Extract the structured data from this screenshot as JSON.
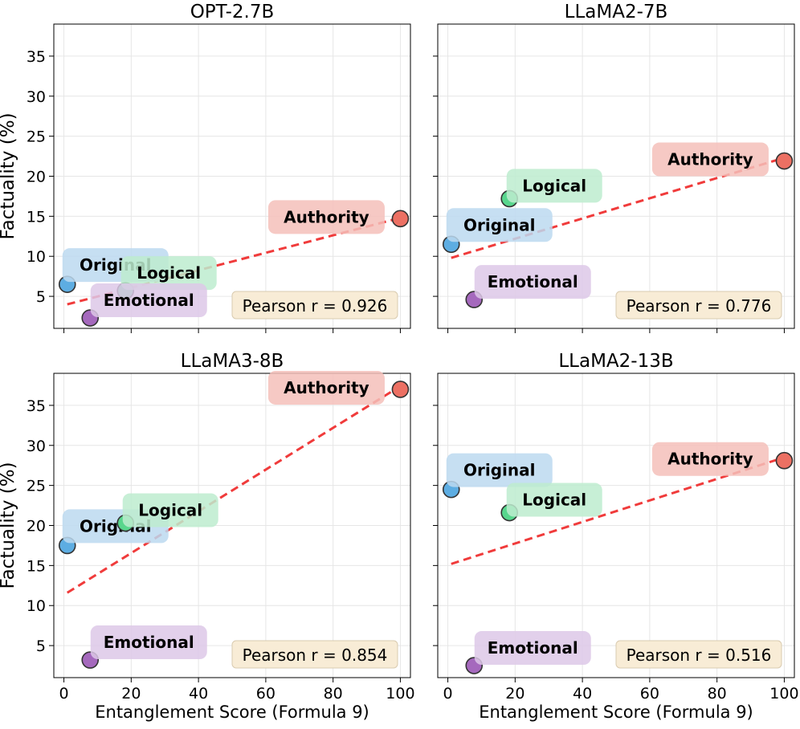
{
  "chart_data": [
    {
      "type": "scatter",
      "title": "OPT-2.7B",
      "xlabel": "",
      "ylabel": "Factuality (%)",
      "xlim": [
        -3,
        103
      ],
      "ylim": [
        1,
        39
      ],
      "xticks": [
        0,
        20,
        40,
        60,
        80,
        100
      ],
      "yticks": [
        5,
        10,
        15,
        20,
        25,
        30,
        35
      ],
      "show_xticklabels": false,
      "show_yticklabels": true,
      "grid": true,
      "annotation": "Pearson r = 0.926",
      "trend": {
        "x0": 1,
        "y0": 4.0,
        "x1": 100,
        "y1": 14.8
      },
      "points": [
        {
          "label": "Original",
          "x": 1,
          "y": 6.5,
          "color": "#5dade2",
          "box": "#bcd9f0"
        },
        {
          "label": "Logical",
          "x": 18.3,
          "y": 5.7,
          "color": "#58d68d",
          "box": "#bdeccf"
        },
        {
          "label": "Emotional",
          "x": 7.8,
          "y": 2.3,
          "color": "#a569bd",
          "box": "#ddc8e7"
        },
        {
          "label": "Authority",
          "x": 100,
          "y": 14.7,
          "color": "#ec7063",
          "box": "#f5c0ba"
        }
      ]
    },
    {
      "type": "scatter",
      "title": "LLaMA2-7B",
      "xlabel": "",
      "ylabel": "",
      "xlim": [
        -3,
        103
      ],
      "ylim": [
        1,
        39
      ],
      "xticks": [
        0,
        20,
        40,
        60,
        80,
        100
      ],
      "yticks": [
        5,
        10,
        15,
        20,
        25,
        30,
        35
      ],
      "show_xticklabels": false,
      "show_yticklabels": false,
      "grid": true,
      "annotation": "Pearson r = 0.776",
      "trend": {
        "x0": 1,
        "y0": 9.8,
        "x1": 100,
        "y1": 22.3
      },
      "points": [
        {
          "label": "Original",
          "x": 1,
          "y": 11.5,
          "color": "#5dade2",
          "box": "#bcd9f0"
        },
        {
          "label": "Logical",
          "x": 18.3,
          "y": 17.2,
          "color": "#58d68d",
          "box": "#bdeccf"
        },
        {
          "label": "Emotional",
          "x": 7.8,
          "y": 4.6,
          "color": "#a569bd",
          "box": "#ddc8e7"
        },
        {
          "label": "Authority",
          "x": 100,
          "y": 21.9,
          "color": "#ec7063",
          "box": "#f5c0ba"
        }
      ]
    },
    {
      "type": "scatter",
      "title": "LLaMA3-8B",
      "xlabel": "Entanglement Score (Formula 9)",
      "ylabel": "Factuality (%)",
      "xlim": [
        -3,
        103
      ],
      "ylim": [
        1,
        39
      ],
      "xticks": [
        0,
        20,
        40,
        60,
        80,
        100
      ],
      "yticks": [
        5,
        10,
        15,
        20,
        25,
        30,
        35
      ],
      "show_xticklabels": true,
      "show_yticklabels": true,
      "grid": true,
      "annotation": "Pearson r = 0.854",
      "trend": {
        "x0": 1,
        "y0": 11.6,
        "x1": 100,
        "y1": 37.4
      },
      "points": [
        {
          "label": "Original",
          "x": 1,
          "y": 17.5,
          "color": "#5dade2",
          "box": "#bcd9f0"
        },
        {
          "label": "Logical",
          "x": 18.3,
          "y": 20.3,
          "color": "#58d68d",
          "box": "#bdeccf"
        },
        {
          "label": "Emotional",
          "x": 7.8,
          "y": 3.2,
          "color": "#a569bd",
          "box": "#ddc8e7"
        },
        {
          "label": "Authority",
          "x": 100,
          "y": 37.0,
          "color": "#ec7063",
          "box": "#f5c0ba"
        }
      ]
    },
    {
      "type": "scatter",
      "title": "LLaMA2-13B",
      "xlabel": "Entanglement Score (Formula 9)",
      "ylabel": "",
      "xlim": [
        -3,
        103
      ],
      "ylim": [
        1,
        39
      ],
      "xticks": [
        0,
        20,
        40,
        60,
        80,
        100
      ],
      "yticks": [
        5,
        10,
        15,
        20,
        25,
        30,
        35
      ],
      "show_xticklabels": true,
      "show_yticklabels": false,
      "grid": true,
      "annotation": "Pearson r = 0.516",
      "trend": {
        "x0": 1,
        "y0": 15.2,
        "x1": 100,
        "y1": 28.5
      },
      "points": [
        {
          "label": "Original",
          "x": 1,
          "y": 24.5,
          "color": "#5dade2",
          "box": "#bcd9f0"
        },
        {
          "label": "Logical",
          "x": 18.3,
          "y": 21.6,
          "color": "#58d68d",
          "box": "#bdeccf"
        },
        {
          "label": "Emotional",
          "x": 7.8,
          "y": 2.5,
          "color": "#a569bd",
          "box": "#ddc8e7"
        },
        {
          "label": "Authority",
          "x": 100,
          "y": 28.1,
          "color": "#ec7063",
          "box": "#f5c0ba"
        }
      ]
    }
  ]
}
